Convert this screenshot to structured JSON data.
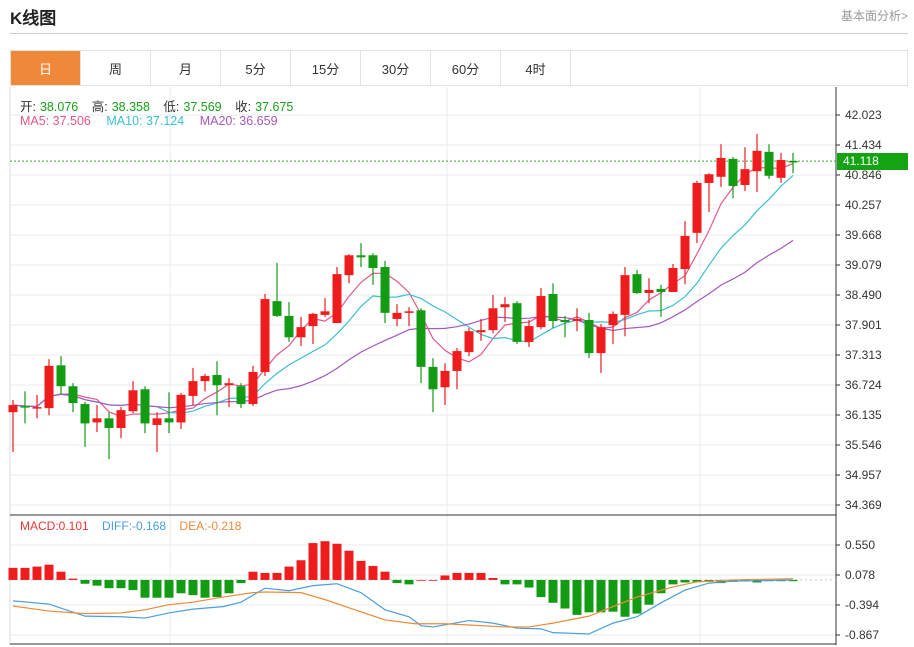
{
  "header": {
    "title": "K线图",
    "link": "基本面分析>"
  },
  "tabs": [
    {
      "label": "日",
      "active": true
    },
    {
      "label": "周"
    },
    {
      "label": "月"
    },
    {
      "label": "5分"
    },
    {
      "label": "15分"
    },
    {
      "label": "30分"
    },
    {
      "label": "60分"
    },
    {
      "label": "4时"
    }
  ],
  "ohlc_legend": {
    "open_label": "开:",
    "open": "38.076",
    "high_label": "高:",
    "high": "38.358",
    "low_label": "低:",
    "low": "37.569",
    "close_label": "收:",
    "close": "37.675"
  },
  "ma_legend": {
    "ma5": "MA5: 37.506",
    "ma10": "MA10: 37.124",
    "ma20": "MA20: 36.659"
  },
  "macd_legend": {
    "macd": "MACD:0.101",
    "diff": "DIFF:-0.168",
    "dea": "DEA:-0.218"
  },
  "current_price": "41.118",
  "colors": {
    "up": "#ee1c1c",
    "down": "#149b14",
    "ma5": "#e4578c",
    "ma10": "#3dbfd0",
    "ma20": "#a658be",
    "diff": "#4a9ee0",
    "dea": "#ef8a3a",
    "accent": "#f0883a"
  },
  "chart_data": {
    "type": "candlestick",
    "price_axis": {
      "ticks": [
        "42.023",
        "41.434",
        "40.846",
        "40.257",
        "39.668",
        "39.079",
        "38.490",
        "37.901",
        "37.313",
        "36.724",
        "36.135",
        "35.546",
        "34.957",
        "34.369"
      ],
      "range": [
        34.369,
        42.023
      ]
    },
    "macd_axis": {
      "ticks": [
        "0.550",
        "0.078",
        "-0.394",
        "-0.867"
      ],
      "range": [
        -0.867,
        0.55
      ]
    },
    "candles": [
      [
        36.19,
        36.43,
        35.41,
        36.33
      ],
      [
        36.31,
        36.6,
        35.97,
        36.29
      ],
      [
        36.27,
        36.53,
        36.07,
        36.29
      ],
      [
        36.27,
        37.23,
        36.13,
        37.1
      ],
      [
        37.11,
        37.29,
        36.53,
        36.7
      ],
      [
        36.7,
        36.76,
        36.19,
        36.37
      ],
      [
        36.35,
        36.39,
        35.51,
        35.97
      ],
      [
        35.99,
        36.33,
        35.8,
        36.07
      ],
      [
        36.07,
        36.19,
        35.27,
        35.88
      ],
      [
        35.88,
        36.29,
        35.68,
        36.23
      ],
      [
        36.21,
        36.8,
        36.17,
        36.62
      ],
      [
        36.64,
        36.7,
        35.78,
        35.97
      ],
      [
        35.94,
        36.19,
        35.41,
        36.07
      ],
      [
        36.07,
        36.58,
        35.78,
        35.99
      ],
      [
        35.99,
        36.57,
        35.86,
        36.53
      ],
      [
        36.51,
        37.06,
        36.33,
        36.8
      ],
      [
        36.8,
        36.94,
        36.6,
        36.9
      ],
      [
        36.92,
        37.19,
        36.13,
        36.72
      ],
      [
        36.72,
        36.86,
        36.29,
        36.76
      ],
      [
        36.7,
        36.76,
        36.27,
        36.35
      ],
      [
        36.35,
        37.1,
        36.31,
        36.98
      ],
      [
        36.98,
        38.51,
        36.9,
        38.41
      ],
      [
        38.37,
        39.12,
        38.06,
        38.08
      ],
      [
        38.08,
        38.35,
        37.57,
        37.66
      ],
      [
        37.66,
        38.06,
        37.49,
        37.86
      ],
      [
        37.88,
        38.14,
        37.53,
        38.12
      ],
      [
        38.1,
        38.43,
        38.06,
        38.17
      ],
      [
        37.94,
        39.04,
        37.94,
        38.9
      ],
      [
        38.88,
        39.29,
        38.72,
        39.27
      ],
      [
        39.27,
        39.51,
        39.04,
        39.23
      ],
      [
        39.27,
        39.31,
        38.69,
        39.02
      ],
      [
        39.04,
        39.16,
        37.94,
        38.14
      ],
      [
        38.02,
        38.31,
        37.88,
        38.14
      ],
      [
        38.14,
        38.25,
        37.88,
        38.17
      ],
      [
        38.19,
        38.23,
        36.76,
        37.08
      ],
      [
        37.08,
        37.25,
        36.19,
        36.64
      ],
      [
        36.68,
        37.15,
        36.33,
        37.0
      ],
      [
        37.0,
        37.45,
        36.64,
        37.39
      ],
      [
        37.37,
        37.84,
        37.29,
        37.78
      ],
      [
        37.76,
        38.02,
        37.59,
        37.8
      ],
      [
        37.8,
        38.49,
        37.74,
        38.23
      ],
      [
        38.25,
        38.45,
        37.96,
        38.31
      ],
      [
        38.33,
        38.37,
        37.53,
        37.57
      ],
      [
        37.57,
        38.0,
        37.47,
        37.88
      ],
      [
        37.86,
        38.63,
        37.82,
        38.47
      ],
      [
        38.51,
        38.72,
        37.84,
        37.98
      ],
      [
        38.0,
        38.08,
        37.66,
        37.96
      ],
      [
        37.98,
        38.23,
        37.78,
        38.02
      ],
      [
        38.0,
        38.14,
        37.25,
        37.35
      ],
      [
        37.35,
        37.92,
        36.96,
        37.86
      ],
      [
        37.9,
        38.17,
        37.53,
        38.12
      ],
      [
        38.1,
        39.04,
        37.68,
        38.88
      ],
      [
        38.9,
        38.98,
        38.51,
        38.53
      ],
      [
        38.53,
        38.82,
        38.33,
        38.59
      ],
      [
        38.61,
        38.69,
        38.06,
        38.55
      ],
      [
        38.55,
        39.1,
        38.55,
        39.02
      ],
      [
        39.0,
        39.94,
        38.7,
        39.65
      ],
      [
        39.71,
        40.73,
        39.51,
        40.69
      ],
      [
        40.69,
        40.88,
        40.12,
        40.86
      ],
      [
        40.81,
        41.45,
        40.61,
        41.18
      ],
      [
        41.16,
        41.2,
        40.39,
        40.63
      ],
      [
        40.65,
        41.39,
        40.53,
        40.96
      ],
      [
        40.92,
        41.65,
        40.51,
        41.32
      ],
      [
        41.3,
        41.45,
        40.77,
        40.83
      ],
      [
        40.79,
        41.28,
        40.69,
        41.14
      ],
      [
        41.12,
        41.28,
        40.88,
        41.1
      ]
    ],
    "macd_hist": [
      0.19,
      0.19,
      0.21,
      0.24,
      0.13,
      0.02,
      -0.06,
      -0.09,
      -0.13,
      -0.13,
      -0.16,
      -0.28,
      -0.28,
      -0.28,
      -0.21,
      -0.24,
      -0.28,
      -0.27,
      -0.21,
      -0.05,
      0.13,
      0.11,
      0.11,
      0.21,
      0.31,
      0.58,
      0.61,
      0.57,
      0.46,
      0.3,
      0.22,
      0.13,
      -0.05,
      -0.07,
      0.0,
      0.0,
      0.07,
      0.11,
      0.11,
      0.11,
      0.03,
      -0.07,
      -0.07,
      -0.12,
      -0.27,
      -0.36,
      -0.45,
      -0.55,
      -0.51,
      -0.51,
      -0.5,
      -0.58,
      -0.53,
      -0.39,
      -0.21,
      -0.07,
      -0.04,
      -0.03,
      -0.03,
      -0.05,
      -0.03,
      -0.02,
      -0.04,
      -0.02,
      -0.02,
      -0.02
    ],
    "diff": [
      [
        0,
        -0.33
      ],
      [
        3,
        -0.38
      ],
      [
        6,
        -0.57
      ],
      [
        9,
        -0.58
      ],
      [
        11,
        -0.6
      ],
      [
        13,
        -0.52
      ],
      [
        15,
        -0.46
      ],
      [
        17.5,
        -0.42
      ],
      [
        19,
        -0.35
      ],
      [
        21,
        -0.13
      ],
      [
        23,
        -0.17
      ],
      [
        25,
        -0.09
      ],
      [
        27,
        -0.06
      ],
      [
        29,
        -0.2
      ],
      [
        31,
        -0.47
      ],
      [
        33,
        -0.58
      ],
      [
        34,
        -0.72
      ],
      [
        35,
        -0.74
      ],
      [
        38,
        -0.64
      ],
      [
        40,
        -0.68
      ],
      [
        42,
        -0.76
      ],
      [
        44,
        -0.77
      ],
      [
        45,
        -0.83
      ],
      [
        48,
        -0.85
      ],
      [
        50,
        -0.68
      ],
      [
        52,
        -0.58
      ],
      [
        54,
        -0.36
      ],
      [
        56,
        -0.16
      ],
      [
        58,
        -0.05
      ],
      [
        60,
        -0.02
      ],
      [
        65,
        0.0
      ]
    ],
    "dea": [
      [
        0,
        -0.41
      ],
      [
        3,
        -0.49
      ],
      [
        6,
        -0.53
      ],
      [
        9,
        -0.52
      ],
      [
        11,
        -0.47
      ],
      [
        13,
        -0.39
      ],
      [
        15,
        -0.35
      ],
      [
        17.5,
        -0.27
      ],
      [
        20,
        -0.2
      ],
      [
        21,
        -0.19
      ],
      [
        24,
        -0.2
      ],
      [
        26,
        -0.31
      ],
      [
        28.5,
        -0.47
      ],
      [
        31,
        -0.63
      ],
      [
        33.5,
        -0.69
      ],
      [
        36,
        -0.69
      ],
      [
        38,
        -0.71
      ],
      [
        41,
        -0.74
      ],
      [
        43,
        -0.74
      ],
      [
        45,
        -0.68
      ],
      [
        48,
        -0.57
      ],
      [
        50,
        -0.42
      ],
      [
        52,
        -0.27
      ],
      [
        55,
        -0.11
      ],
      [
        57,
        -0.03
      ],
      [
        60,
        0.0
      ],
      [
        65,
        0.02
      ]
    ]
  }
}
